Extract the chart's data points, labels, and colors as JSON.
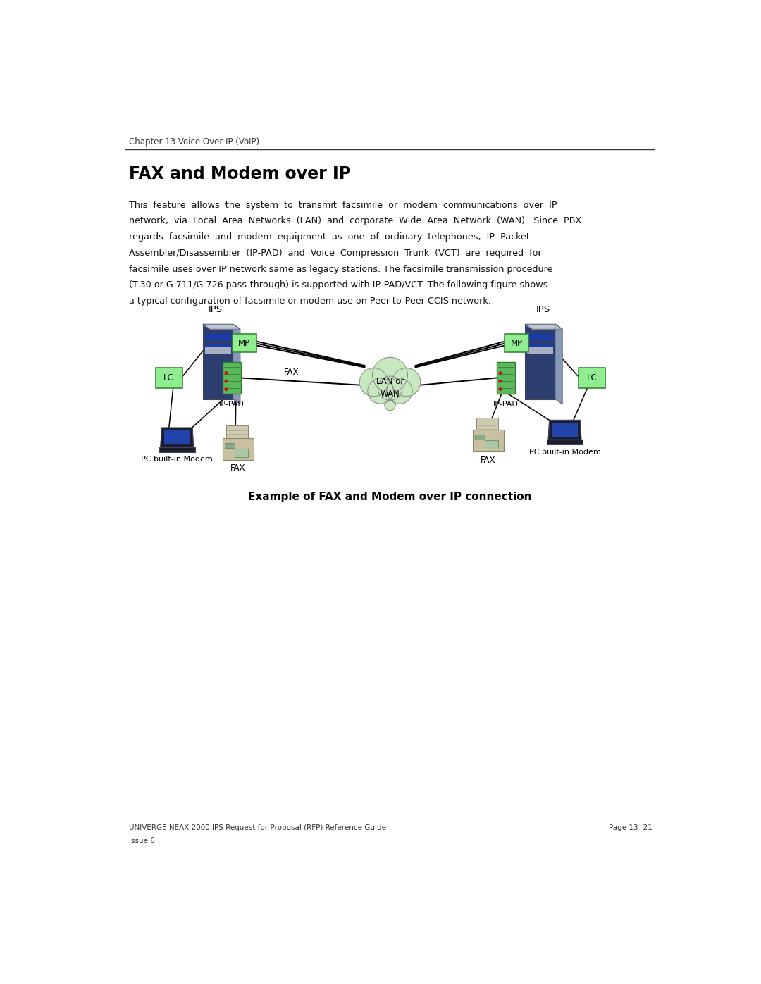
{
  "page_width": 10.8,
  "page_height": 13.97,
  "bg_color": "#ffffff",
  "header_text": "Chapter 13 Voice Over IP (VoIP)",
  "title": "FAX and Modem over IP",
  "body_text_lines": [
    "This  feature  allows  the  system  to  transmit  facsimile  or  modem  communications  over  IP",
    "network,  via  Local  Area  Networks  (LAN)  and  corporate  Wide  Area  Network  (WAN).  Since  PBX",
    "regards  facsimile  and  modem  equipment  as  one  of  ordinary  telephones,  IP  Packet",
    "Assembler/Disassembler  (IP-PAD)  and  Voice  Compression  Trunk  (VCT)  are  required  for",
    "facsimile uses over IP network same as legacy stations. The facsimile transmission procedure",
    "(T.30 or G.711/G.726 pass-through) is supported with IP-PAD/VCT. The following figure shows",
    "a typical configuration of facsimile or modem use on Peer-to-Peer CCIS network."
  ],
  "diagram_caption": "Example of FAX and Modem over IP connection",
  "footer_left1": "UNIVERGE NEAX 2000 IPS Request for Proposal (RFP) Reference Guide",
  "footer_left2": "Issue 6",
  "footer_right": "Page 13- 21",
  "green_fill": "#90EE90",
  "green_edge": "#3a8a3a",
  "ippad_fill": "#5cb85c",
  "ippad_edge": "#2d7a2d",
  "server_dark": "#2c3e70",
  "server_side": "#8898b8",
  "server_top": "#c0c8d8",
  "server_blue": "#1a3aaa",
  "cloud_fill": "#c8e8c0",
  "cloud_edge": "#888888",
  "line_color": "#000000"
}
